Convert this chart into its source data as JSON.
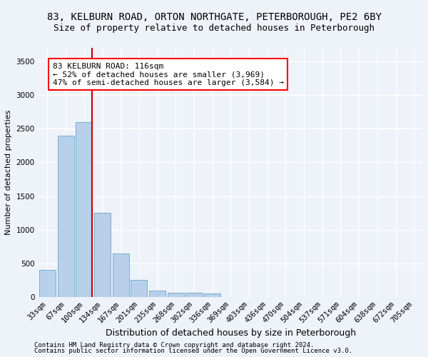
{
  "title_line1": "83, KELBURN ROAD, ORTON NORTHGATE, PETERBOROUGH, PE2 6BY",
  "title_line2": "Size of property relative to detached houses in Peterborough",
  "xlabel": "Distribution of detached houses by size in Peterborough",
  "ylabel": "Number of detached properties",
  "categories": [
    "33sqm",
    "67sqm",
    "100sqm",
    "134sqm",
    "167sqm",
    "201sqm",
    "235sqm",
    "268sqm",
    "302sqm",
    "336sqm",
    "369sqm",
    "403sqm",
    "436sqm",
    "470sqm",
    "504sqm",
    "537sqm",
    "571sqm",
    "604sqm",
    "638sqm",
    "672sqm",
    "705sqm"
  ],
  "values": [
    400,
    2400,
    2600,
    1250,
    650,
    250,
    100,
    65,
    65,
    55,
    0,
    0,
    0,
    0,
    0,
    0,
    0,
    0,
    0,
    0,
    0
  ],
  "bar_color": "#b8d0ea",
  "bar_edge_color": "#7aadd4",
  "vline_color": "#cc0000",
  "annotation_text": "83 KELBURN ROAD: 116sqm\n← 52% of detached houses are smaller (3,969)\n47% of semi-detached houses are larger (3,584) →",
  "ylim": [
    0,
    3700
  ],
  "yticks": [
    0,
    500,
    1000,
    1500,
    2000,
    2500,
    3000,
    3500
  ],
  "footer_line1": "Contains HM Land Registry data © Crown copyright and database right 2024.",
  "footer_line2": "Contains public sector information licensed under the Open Government Licence v3.0.",
  "background_color": "#eef2f9",
  "grid_color": "#ffffff",
  "title1_fontsize": 10,
  "title2_fontsize": 9,
  "xlabel_fontsize": 9,
  "ylabel_fontsize": 8,
  "tick_fontsize": 7.5,
  "footer_fontsize": 6.5,
  "annot_fontsize": 8
}
